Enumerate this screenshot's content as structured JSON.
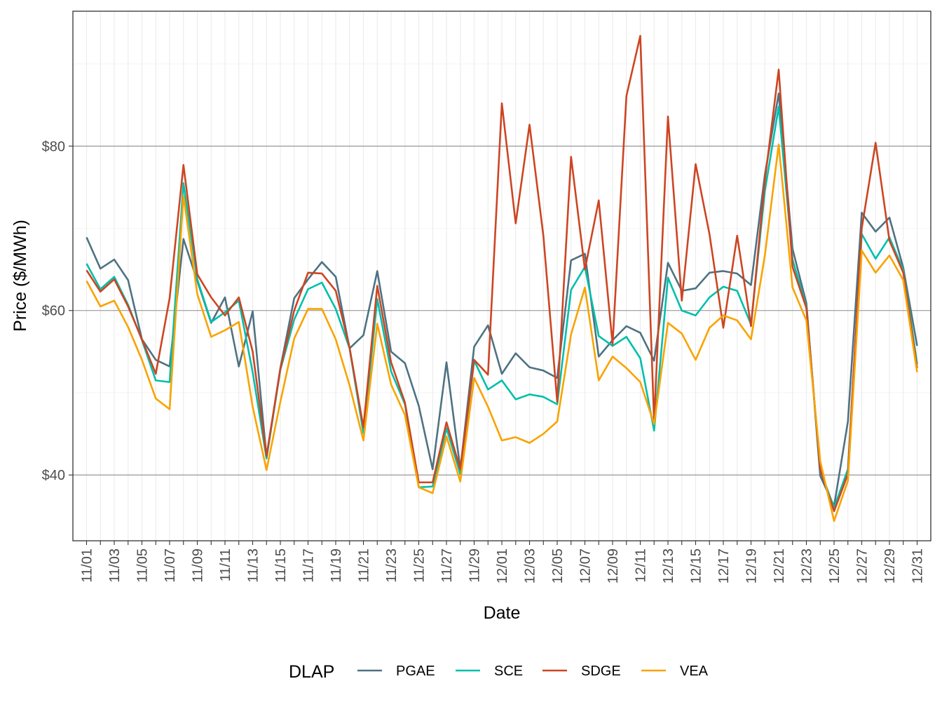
{
  "chart_data": {
    "type": "line",
    "xlabel": "Date",
    "ylabel": "Price ($/MWh)",
    "x": [
      "11/01",
      "11/02",
      "11/03",
      "11/04",
      "11/05",
      "11/06",
      "11/07",
      "11/08",
      "11/09",
      "11/10",
      "11/11",
      "11/12",
      "11/13",
      "11/14",
      "11/15",
      "11/16",
      "11/17",
      "11/18",
      "11/19",
      "11/20",
      "11/21",
      "11/22",
      "11/23",
      "11/24",
      "11/25",
      "11/26",
      "11/27",
      "11/28",
      "11/29",
      "11/30",
      "12/01",
      "12/02",
      "12/03",
      "12/04",
      "12/05",
      "12/06",
      "12/07",
      "12/08",
      "12/09",
      "12/10",
      "12/11",
      "12/12",
      "12/13",
      "12/14",
      "12/15",
      "12/16",
      "12/17",
      "12/18",
      "12/19",
      "12/20",
      "12/21",
      "12/22",
      "12/23",
      "12/24",
      "12/25",
      "12/26",
      "12/27",
      "12/28",
      "12/29",
      "12/30",
      "12/31"
    ],
    "x_tick_labels": [
      "11/01",
      "11/03",
      "11/05",
      "11/07",
      "11/09",
      "11/11",
      "11/13",
      "11/15",
      "11/17",
      "11/19",
      "11/21",
      "11/23",
      "11/25",
      "11/27",
      "11/29",
      "12/01",
      "12/03",
      "12/05",
      "12/07",
      "12/09",
      "12/11",
      "12/13",
      "12/15",
      "12/17",
      "12/19",
      "12/21",
      "12/23",
      "12/25",
      "12/27",
      "12/29",
      "12/31"
    ],
    "y_ticks": [
      40,
      60,
      80
    ],
    "y_tick_labels": [
      "$40",
      "$60",
      "$80"
    ],
    "ylim": [
      32,
      96.4
    ],
    "grid": true,
    "legend_title": "DLAP",
    "legend_position": "bottom",
    "series": [
      {
        "name": "PGAE",
        "color": "#4e7282",
        "values": [
          68.9,
          65.1,
          66.2,
          63.7,
          56.5,
          54.0,
          53.2,
          68.7,
          63.6,
          58.5,
          61.6,
          53.2,
          59.9,
          42.2,
          53.0,
          61.5,
          63.8,
          65.9,
          64.1,
          55.4,
          57.0,
          64.8,
          55.0,
          53.6,
          48.4,
          40.7,
          53.7,
          40.7,
          55.6,
          58.2,
          52.3,
          54.8,
          53.1,
          52.7,
          51.8,
          66.1,
          66.9,
          54.4,
          56.4,
          58.1,
          57.3,
          53.9,
          65.8,
          62.4,
          62.7,
          64.6,
          64.8,
          64.5,
          63.1,
          76.5,
          86.4,
          67.5,
          60.9,
          39.9,
          36.2,
          46.5,
          71.9,
          69.6,
          71.3,
          65.2,
          55.7
        ]
      },
      {
        "name": "SCE",
        "color": "#00bfab",
        "values": [
          65.7,
          62.6,
          64.1,
          60.7,
          56.4,
          51.5,
          51.3,
          75.5,
          63.8,
          58.6,
          59.8,
          61.2,
          52.5,
          42.0,
          52.8,
          58.9,
          62.6,
          63.4,
          60.2,
          55.4,
          45.1,
          61.4,
          52.6,
          48.6,
          38.5,
          38.6,
          45.7,
          40.1,
          53.9,
          50.4,
          51.5,
          49.2,
          49.8,
          49.5,
          48.6,
          62.5,
          65.3,
          56.9,
          55.7,
          56.8,
          54.2,
          45.4,
          64.0,
          60.0,
          59.4,
          61.6,
          62.9,
          62.4,
          58.3,
          74.5,
          84.8,
          66.2,
          60.4,
          40.6,
          36.0,
          40.7,
          69.3,
          66.3,
          68.9,
          64.9,
          53.5
        ]
      },
      {
        "name": "SDGE",
        "color": "#cd4522",
        "values": [
          64.9,
          62.3,
          63.8,
          60.5,
          56.5,
          52.3,
          61.5,
          77.7,
          64.4,
          61.6,
          59.4,
          61.6,
          55.0,
          42.3,
          52.9,
          60.0,
          64.6,
          64.5,
          62.4,
          55.5,
          45.8,
          63.0,
          53.7,
          48.8,
          39.1,
          39.1,
          46.4,
          40.7,
          54.0,
          52.2,
          85.2,
          70.6,
          82.6,
          69.1,
          48.9,
          78.7,
          65.0,
          73.4,
          55.9,
          86.1,
          93.4,
          46.5,
          83.6,
          61.2,
          77.8,
          69.3,
          57.9,
          69.1,
          58.1,
          75.8,
          89.3,
          65.3,
          60.3,
          40.7,
          35.6,
          40.1,
          70.0,
          80.4,
          68.5,
          64.6,
          53.0
        ]
      },
      {
        "name": "VEA",
        "color": "#f9a300",
        "values": [
          63.6,
          60.5,
          61.2,
          58.0,
          54.0,
          49.3,
          48.0,
          74.0,
          62.0,
          56.8,
          57.6,
          58.6,
          48.3,
          40.6,
          48.9,
          56.6,
          60.2,
          60.2,
          56.5,
          50.9,
          44.2,
          58.4,
          51.0,
          47.3,
          38.5,
          37.8,
          44.7,
          39.2,
          51.8,
          48.3,
          44.2,
          44.6,
          43.9,
          45.0,
          46.5,
          57.1,
          62.8,
          51.5,
          54.4,
          53.0,
          51.3,
          46.2,
          58.5,
          57.2,
          54.0,
          57.9,
          59.4,
          58.8,
          56.5,
          66.7,
          80.2,
          62.8,
          58.8,
          41.7,
          34.4,
          39.3,
          67.3,
          64.6,
          66.7,
          63.7,
          52.5
        ]
      }
    ]
  }
}
